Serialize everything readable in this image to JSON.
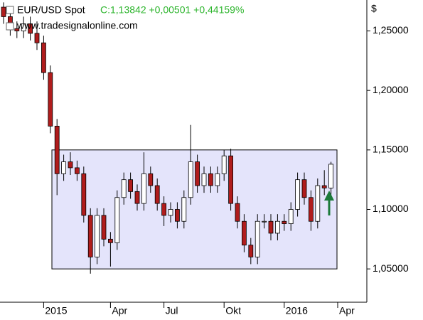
{
  "chart_data": {
    "type": "candlestick",
    "title": "EUR/USD Spot",
    "subtitle": "C:1,13842 +0,00501 +0,44159%",
    "source": "www.tradesignalonline.com",
    "y_label": "$",
    "categories": [
      null,
      null,
      null,
      null,
      null,
      null,
      "2015",
      null,
      null,
      null,
      null,
      null,
      null,
      null,
      null,
      null,
      "Apr",
      null,
      null,
      null,
      null,
      null,
      null,
      null,
      "Jul",
      null,
      null,
      null,
      null,
      null,
      null,
      null,
      null,
      "Okt",
      null,
      null,
      null,
      null,
      null,
      null,
      null,
      null,
      "2016",
      null,
      null,
      null,
      null,
      null,
      null,
      null,
      "Apr"
    ],
    "open": [
      1.27,
      1.262,
      1.252,
      1.25,
      1.256,
      1.248,
      1.24,
      1.215,
      1.17,
      1.13,
      1.14,
      1.135,
      1.13,
      1.095,
      1.06,
      1.095,
      1.075,
      1.072,
      1.11,
      1.125,
      1.115,
      1.105,
      1.13,
      1.12,
      1.105,
      1.095,
      1.1,
      1.09,
      1.11,
      1.14,
      1.12,
      1.13,
      1.12,
      1.13,
      1.145,
      1.105,
      1.09,
      1.07,
      1.06,
      1.09,
      1.09,
      1.08,
      1.09,
      1.088,
      1.1,
      1.125,
      1.11,
      1.09,
      1.12,
      1.118,
      null
    ],
    "high": [
      1.274,
      1.268,
      1.258,
      1.262,
      1.262,
      1.258,
      1.246,
      1.221,
      1.176,
      1.146,
      1.148,
      1.141,
      1.136,
      1.101,
      1.101,
      1.101,
      1.081,
      1.116,
      1.131,
      1.131,
      1.121,
      1.148,
      1.136,
      1.126,
      1.111,
      1.106,
      1.106,
      1.116,
      1.171,
      1.146,
      1.136,
      1.136,
      1.136,
      1.15,
      1.151,
      1.111,
      1.096,
      1.076,
      1.096,
      1.096,
      1.096,
      1.096,
      1.096,
      1.106,
      1.131,
      1.131,
      1.116,
      1.126,
      1.133,
      1.14,
      null
    ],
    "low": [
      1.256,
      1.246,
      1.244,
      1.244,
      1.242,
      1.234,
      1.209,
      1.164,
      1.112,
      1.124,
      1.129,
      1.124,
      1.089,
      1.046,
      1.054,
      1.069,
      1.052,
      1.066,
      1.104,
      1.109,
      1.099,
      1.099,
      1.114,
      1.099,
      1.086,
      1.089,
      1.084,
      1.084,
      1.104,
      1.114,
      1.114,
      1.114,
      1.114,
      1.124,
      1.099,
      1.084,
      1.064,
      1.054,
      1.054,
      1.084,
      1.074,
      1.074,
      1.082,
      1.082,
      1.094,
      1.104,
      1.082,
      1.084,
      1.112,
      1.112,
      null
    ],
    "close": [
      1.262,
      1.252,
      1.25,
      1.256,
      1.248,
      1.24,
      1.215,
      1.17,
      1.13,
      1.14,
      1.135,
      1.13,
      1.095,
      1.06,
      1.095,
      1.075,
      1.072,
      1.11,
      1.125,
      1.115,
      1.105,
      1.13,
      1.12,
      1.105,
      1.095,
      1.1,
      1.09,
      1.11,
      1.14,
      1.12,
      1.13,
      1.12,
      1.13,
      1.145,
      1.105,
      1.09,
      1.07,
      1.06,
      1.09,
      1.09,
      1.08,
      1.09,
      1.088,
      1.1,
      1.125,
      1.11,
      1.09,
      1.12,
      1.118,
      1.138,
      null
    ],
    "up_color": "#ffffff",
    "down_color": "#b01c1c",
    "range_box": [
      1.05,
      1.15
    ],
    "box_color": "#e4e4fb",
    "ylim": [
      1.022,
      1.276
    ],
    "yticks": [
      {
        "value": 1.05,
        "label": "1,05000"
      },
      {
        "value": 1.1,
        "label": "1,10000"
      },
      {
        "value": 1.15,
        "label": "1,15000"
      },
      {
        "value": 1.2,
        "label": "1,20000"
      },
      {
        "value": 1.25,
        "label": "1,25000"
      }
    ]
  }
}
